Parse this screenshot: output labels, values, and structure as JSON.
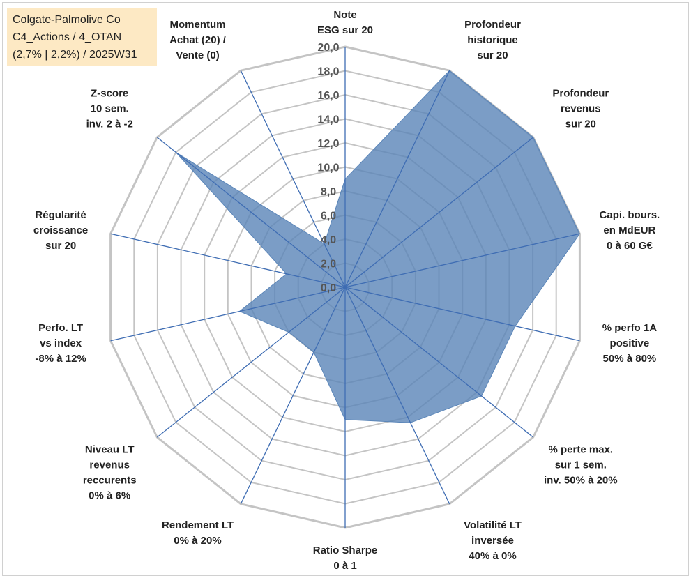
{
  "info_box": {
    "line1": "Colgate-Palmolive Co",
    "line2": "C4_Actions / 4_OTAN",
    "line3": "(2,7% | 2,2%) / 2025W31"
  },
  "chart_data": {
    "type": "radar",
    "title": "",
    "axes": [
      [
        "Note",
        "ESG sur 20"
      ],
      [
        "Profondeur",
        "historique",
        "sur 20"
      ],
      [
        "Profondeur",
        "revenus",
        "sur 20"
      ],
      [
        "Capi. bours.",
        "en MdEUR",
        "0 à 60 G€"
      ],
      [
        "% perfo 1A",
        "positive",
        "50% à 80%"
      ],
      [
        "% perte max.",
        "sur 1 sem.",
        "inv. 50% à 20%"
      ],
      [
        "Volatilité LT",
        "inversée",
        "40% à 0%"
      ],
      [
        "Ratio Sharpe",
        "0 à 1"
      ],
      [
        "Rendement LT",
        "0% à 20%"
      ],
      [
        "Niveau LT",
        "revenus",
        "reccurents",
        "0% à 6%"
      ],
      [
        "Perfo. LT",
        "vs index",
        "-8% à 12%"
      ],
      [
        "Régularité",
        "croissance",
        "sur 20"
      ],
      [
        "Z-score",
        "10 sem.",
        "inv. 2 à -2"
      ],
      [
        "Momentum",
        "Achat (20) /",
        "Vente (0)"
      ]
    ],
    "values": [
      9,
      20,
      20,
      20,
      14.5,
      14.5,
      12.5,
      11,
      6,
      6,
      9,
      5,
      18,
      4
    ],
    "range": [
      0,
      20
    ],
    "ticks": [
      "0,0",
      "2,0",
      "4,0",
      "6,0",
      "8,0",
      "10,0",
      "12,0",
      "14,0",
      "16,0",
      "18,0",
      "20,0"
    ],
    "grid_levels": 10,
    "fill_color": "#5a85b8",
    "fill_opacity": 0.8,
    "spoke_color": "#3f6db3",
    "grid_color": "#c4c4c4"
  }
}
